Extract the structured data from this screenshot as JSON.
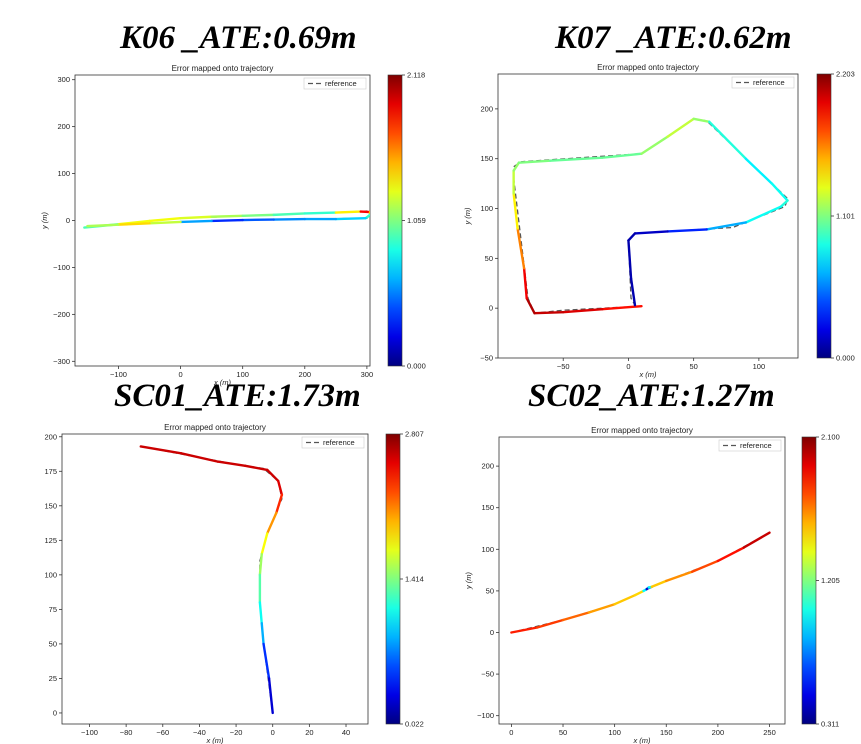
{
  "titles": [
    "K06 _ATE:0.69m",
    "K07 _ATE:0.62m",
    "SC01_ATE:1.73m",
    "SC02_ATE:1.27m"
  ],
  "chart_data": [
    {
      "type": "line",
      "title": "Error mapped onto trajectory",
      "xlabel": "x (m)",
      "ylabel": "y (m)",
      "xlim": [
        -170,
        305
      ],
      "ylim": [
        -310,
        310
      ],
      "xticks": [
        -100,
        0,
        100,
        200,
        300
      ],
      "yticks": [
        -300,
        -200,
        -100,
        0,
        100,
        200,
        300
      ],
      "legend": {
        "label": "reference",
        "position": "top-right"
      },
      "colorbar": {
        "min": 0.0,
        "max": 2.118,
        "labels": [
          "2.118",
          "1.059",
          "0.000"
        ]
      },
      "reference": [
        [
          -155,
          -15
        ],
        [
          0,
          5
        ],
        [
          150,
          12
        ],
        [
          300,
          20
        ],
        [
          305,
          12
        ],
        [
          300,
          5
        ],
        [
          150,
          2
        ],
        [
          0,
          -3
        ],
        [
          -155,
          -12
        ]
      ],
      "estimate": [
        [
          -155,
          -15,
          0.6
        ],
        [
          -100,
          -8,
          1.3
        ],
        [
          -50,
          -1,
          1.3
        ],
        [
          0,
          5,
          1.3
        ],
        [
          50,
          8,
          1.2
        ],
        [
          100,
          10,
          1.1
        ],
        [
          150,
          12,
          1.0
        ],
        [
          200,
          15,
          0.9
        ],
        [
          250,
          17,
          0.9
        ],
        [
          290,
          19,
          1.8
        ],
        [
          305,
          18,
          1.9
        ],
        [
          305,
          12,
          1.0
        ],
        [
          298,
          5,
          0.8
        ],
        [
          250,
          3,
          0.6
        ],
        [
          200,
          3,
          0.6
        ],
        [
          150,
          2,
          0.5
        ],
        [
          100,
          1,
          0.4
        ],
        [
          50,
          -1,
          0.3
        ],
        [
          0,
          -3,
          0.9
        ],
        [
          -50,
          -6,
          1.5
        ],
        [
          -100,
          -9,
          1.3
        ],
        [
          -150,
          -12,
          1.0
        ]
      ]
    },
    {
      "type": "line",
      "title": "Error mapped onto trajectory",
      "xlabel": "x (m)",
      "ylabel": "y (m)",
      "xlim": [
        -100,
        130
      ],
      "ylim": [
        -50,
        235
      ],
      "xticks": [
        -50,
        0,
        50,
        100
      ],
      "yticks": [
        -50,
        0,
        50,
        100,
        150,
        200
      ],
      "legend": {
        "label": "reference",
        "position": "top-right"
      },
      "colorbar": {
        "min": 0.0,
        "max": 2.203,
        "labels": [
          "2.203",
          "1.101",
          "0.000"
        ]
      },
      "reference": [
        [
          10,
          2
        ],
        [
          -50,
          -2
        ],
        [
          -72,
          -5
        ],
        [
          -77,
          10
        ],
        [
          -88,
          130
        ],
        [
          -88,
          142
        ],
        [
          -82,
          147
        ],
        [
          10,
          155
        ],
        [
          50,
          190
        ],
        [
          60,
          188
        ],
        [
          122,
          110
        ],
        [
          120,
          102
        ],
        [
          80,
          81
        ],
        [
          5,
          75
        ],
        [
          0,
          68
        ],
        [
          2,
          10
        ],
        [
          5,
          3
        ]
      ],
      "estimate": [
        [
          10,
          2,
          1.8
        ],
        [
          -20,
          -1,
          2.0
        ],
        [
          -50,
          -4,
          2.0
        ],
        [
          -72,
          -5,
          2.1
        ],
        [
          -78,
          10,
          2.1
        ],
        [
          -80,
          40,
          1.8
        ],
        [
          -85,
          80,
          1.5
        ],
        [
          -88,
          115,
          1.3
        ],
        [
          -88,
          138,
          1.2
        ],
        [
          -84,
          146,
          1.1
        ],
        [
          -60,
          148,
          1.1
        ],
        [
          -20,
          151,
          1.0
        ],
        [
          10,
          155,
          1.1
        ],
        [
          30,
          172,
          1.2
        ],
        [
          50,
          190,
          1.3
        ],
        [
          62,
          187,
          1.0
        ],
        [
          90,
          150,
          0.8
        ],
        [
          110,
          125,
          0.8
        ],
        [
          122,
          108,
          0.9
        ],
        [
          117,
          102,
          0.9
        ],
        [
          90,
          86,
          0.8
        ],
        [
          60,
          79,
          0.5
        ],
        [
          30,
          77,
          0.2
        ],
        [
          5,
          75,
          0.1
        ],
        [
          0,
          68,
          0.1
        ],
        [
          2,
          30,
          0.1
        ],
        [
          5,
          3,
          0.1
        ]
      ]
    },
    {
      "type": "line",
      "title": "Error mapped onto trajectory",
      "xlabel": "x (m)",
      "ylabel": "",
      "xlim": [
        -115,
        52
      ],
      "ylim": [
        -8,
        202
      ],
      "xticks": [
        -100,
        -80,
        -60,
        -40,
        -20,
        0,
        20,
        40
      ],
      "yticks": [
        0,
        25,
        50,
        75,
        100,
        125,
        150,
        175,
        200
      ],
      "legend": {
        "label": "reference",
        "position": "top-right"
      },
      "colorbar": {
        "min": 0.022,
        "max": 2.807,
        "labels": [
          "2.807",
          "1.414",
          "0.022"
        ]
      },
      "reference": [
        [
          -72,
          193
        ],
        [
          -20,
          180
        ],
        [
          -5,
          177
        ],
        [
          3,
          168
        ],
        [
          5,
          155
        ],
        [
          -3,
          130
        ],
        [
          -7,
          110
        ],
        [
          -7,
          80
        ],
        [
          -5,
          50
        ],
        [
          0,
          0
        ]
      ],
      "estimate": [
        [
          -72,
          193,
          2.6
        ],
        [
          -50,
          188,
          2.6
        ],
        [
          -30,
          182,
          2.6
        ],
        [
          -15,
          179,
          2.6
        ],
        [
          -3,
          176,
          2.6
        ],
        [
          3,
          168,
          2.6
        ],
        [
          5,
          158,
          2.5
        ],
        [
          2,
          145,
          2.2
        ],
        [
          -3,
          130,
          1.9
        ],
        [
          -6,
          115,
          1.6
        ],
        [
          -7,
          100,
          1.4
        ],
        [
          -7,
          80,
          1.2
        ],
        [
          -6,
          65,
          1.0
        ],
        [
          -5,
          50,
          0.7
        ],
        [
          -2,
          25,
          0.3
        ],
        [
          0,
          0,
          0.2
        ]
      ]
    },
    {
      "type": "line",
      "title": "Error mapped onto trajectory",
      "xlabel": "x (m)",
      "ylabel": "y (m)",
      "xlim": [
        -12,
        265
      ],
      "ylim": [
        -110,
        235
      ],
      "xticks": [
        0,
        50,
        100,
        150,
        200,
        250
      ],
      "yticks": [
        -100,
        -50,
        0,
        50,
        100,
        150,
        200
      ],
      "legend": {
        "label": "reference",
        "position": "top-right"
      },
      "colorbar": {
        "min": 0.311,
        "max": 2.1,
        "labels": [
          "2.100",
          "1.205",
          "0.311"
        ]
      },
      "reference": [
        [
          0,
          0
        ],
        [
          50,
          15
        ],
        [
          100,
          34
        ],
        [
          132,
          52
        ],
        [
          150,
          62
        ],
        [
          200,
          86
        ],
        [
          250,
          120
        ]
      ],
      "estimate": [
        [
          0,
          0,
          1.85
        ],
        [
          25,
          6,
          1.8
        ],
        [
          50,
          15,
          1.75
        ],
        [
          75,
          24,
          1.65
        ],
        [
          100,
          34,
          1.55
        ],
        [
          120,
          45,
          1.5
        ],
        [
          128,
          50,
          1.5
        ],
        [
          131,
          52,
          0.45
        ],
        [
          133,
          54,
          0.45
        ],
        [
          136,
          55,
          1.5
        ],
        [
          150,
          62,
          1.55
        ],
        [
          175,
          73,
          1.7
        ],
        [
          200,
          86,
          1.8
        ],
        [
          225,
          102,
          1.9
        ],
        [
          250,
          120,
          2.05
        ]
      ]
    }
  ]
}
